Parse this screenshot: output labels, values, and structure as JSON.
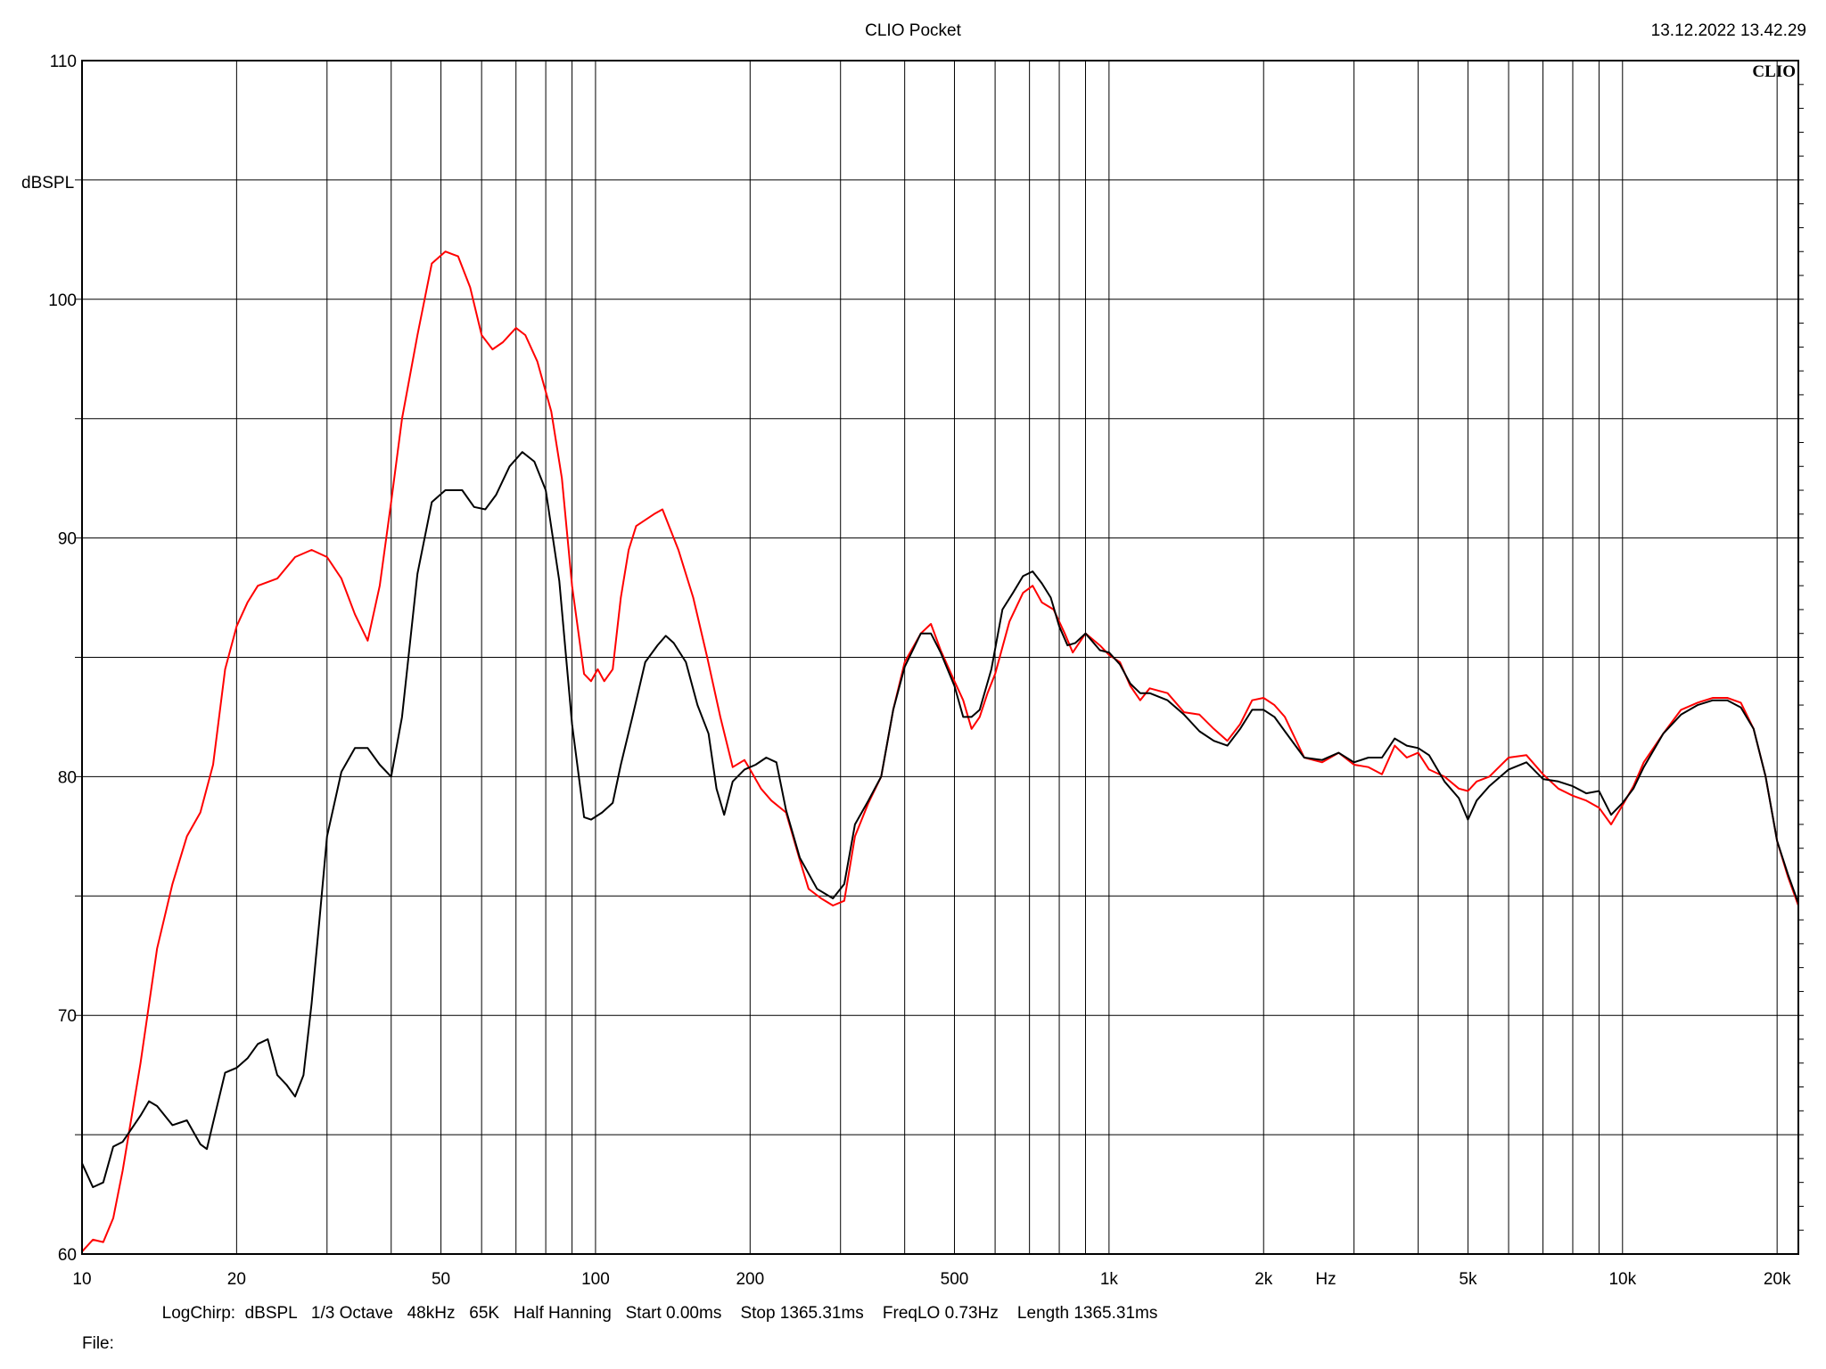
{
  "header": {
    "title": "CLIO Pocket",
    "timestamp": "13.12.2022 13.42.29",
    "logo": "CLIO"
  },
  "footer": {
    "settings": "LogChirp:  dBSPL   1/3 Octave   48kHz   65K   Half Hanning   Start 0.00ms    Stop 1365.31ms    FreqLO 0.73Hz    Length 1365.31ms",
    "file_label": "File:"
  },
  "chart_data": {
    "type": "line",
    "title": "CLIO Pocket",
    "xlabel": "Hz",
    "ylabel": "dBSPL",
    "xscale": "log",
    "xlim": [
      10,
      22000
    ],
    "ylim": [
      60,
      110
    ],
    "grid": true,
    "x_ticks": [
      10,
      20,
      50,
      100,
      200,
      500,
      1000,
      2000,
      5000,
      10000,
      20000
    ],
    "x_tick_labels": [
      "10",
      "20",
      "50",
      "100",
      "200",
      "500",
      "1k",
      "2k",
      "5k",
      "10k",
      "20k"
    ],
    "y_ticks": [
      60,
      70,
      80,
      90,
      100,
      110
    ],
    "y_tick_labels": [
      "60",
      "70",
      "80",
      "90",
      "100",
      "110"
    ],
    "series": [
      {
        "color": "#ff0000",
        "points": [
          [
            10,
            60.1
          ],
          [
            10.5,
            60.6
          ],
          [
            11,
            60.5
          ],
          [
            11.5,
            61.5
          ],
          [
            12,
            63.5
          ],
          [
            13,
            68
          ],
          [
            14,
            72.8
          ],
          [
            15,
            75.5
          ],
          [
            16,
            77.5
          ],
          [
            17,
            78.5
          ],
          [
            18,
            80.5
          ],
          [
            19,
            84.5
          ],
          [
            20,
            86.3
          ],
          [
            21,
            87.3
          ],
          [
            22,
            88
          ],
          [
            24,
            88.3
          ],
          [
            26,
            89.2
          ],
          [
            28,
            89.5
          ],
          [
            30,
            89.2
          ],
          [
            32,
            88.3
          ],
          [
            34,
            86.8
          ],
          [
            36,
            85.7
          ],
          [
            38,
            88
          ],
          [
            40,
            91.5
          ],
          [
            42,
            95
          ],
          [
            45,
            98.5
          ],
          [
            48,
            101.5
          ],
          [
            51,
            102
          ],
          [
            54,
            101.8
          ],
          [
            57,
            100.5
          ],
          [
            60,
            98.5
          ],
          [
            63,
            97.9
          ],
          [
            66,
            98.2
          ],
          [
            70,
            98.8
          ],
          [
            73,
            98.5
          ],
          [
            77,
            97.4
          ],
          [
            82,
            95.3
          ],
          [
            86,
            92.5
          ],
          [
            90,
            88
          ],
          [
            95,
            84.3
          ],
          [
            98,
            84
          ],
          [
            101,
            84.5
          ],
          [
            104,
            84
          ],
          [
            108,
            84.5
          ],
          [
            112,
            87.5
          ],
          [
            116,
            89.5
          ],
          [
            120,
            90.5
          ],
          [
            130,
            91
          ],
          [
            135,
            91.2
          ],
          [
            145,
            89.5
          ],
          [
            155,
            87.5
          ],
          [
            165,
            85
          ],
          [
            175,
            82.5
          ],
          [
            185,
            80.4
          ],
          [
            195,
            80.7
          ],
          [
            200,
            80.3
          ],
          [
            210,
            79.5
          ],
          [
            220,
            79
          ],
          [
            235,
            78.5
          ],
          [
            250,
            76.5
          ],
          [
            260,
            75.3
          ],
          [
            275,
            74.9
          ],
          [
            290,
            74.6
          ],
          [
            305,
            74.8
          ],
          [
            320,
            77.5
          ],
          [
            340,
            78.9
          ],
          [
            360,
            80
          ],
          [
            380,
            82.8
          ],
          [
            400,
            84.8
          ],
          [
            430,
            86
          ],
          [
            450,
            86.4
          ],
          [
            470,
            85.3
          ],
          [
            500,
            84
          ],
          [
            520,
            83.2
          ],
          [
            540,
            82
          ],
          [
            560,
            82.5
          ],
          [
            580,
            83.5
          ],
          [
            600,
            84.3
          ],
          [
            640,
            86.5
          ],
          [
            680,
            87.7
          ],
          [
            710,
            88
          ],
          [
            740,
            87.3
          ],
          [
            780,
            87
          ],
          [
            820,
            86
          ],
          [
            850,
            85.2
          ],
          [
            900,
            86
          ],
          [
            960,
            85.5
          ],
          [
            1000,
            85.1
          ],
          [
            1050,
            84.8
          ],
          [
            1100,
            83.8
          ],
          [
            1150,
            83.2
          ],
          [
            1200,
            83.7
          ],
          [
            1300,
            83.5
          ],
          [
            1400,
            82.7
          ],
          [
            1500,
            82.6
          ],
          [
            1600,
            82
          ],
          [
            1700,
            81.5
          ],
          [
            1800,
            82.2
          ],
          [
            1900,
            83.2
          ],
          [
            2000,
            83.3
          ],
          [
            2100,
            83
          ],
          [
            2200,
            82.5
          ],
          [
            2400,
            80.8
          ],
          [
            2600,
            80.6
          ],
          [
            2800,
            81
          ],
          [
            3000,
            80.5
          ],
          [
            3200,
            80.4
          ],
          [
            3400,
            80.1
          ],
          [
            3600,
            81.3
          ],
          [
            3800,
            80.8
          ],
          [
            4000,
            81
          ],
          [
            4200,
            80.3
          ],
          [
            4500,
            80
          ],
          [
            4800,
            79.5
          ],
          [
            5000,
            79.4
          ],
          [
            5200,
            79.8
          ],
          [
            5500,
            80
          ],
          [
            6000,
            80.8
          ],
          [
            6500,
            80.9
          ],
          [
            7000,
            80.1
          ],
          [
            7500,
            79.5
          ],
          [
            8000,
            79.2
          ],
          [
            8500,
            79
          ],
          [
            9000,
            78.7
          ],
          [
            9500,
            78
          ],
          [
            10000,
            78.8
          ],
          [
            10500,
            79.6
          ],
          [
            11000,
            80.6
          ],
          [
            12000,
            81.8
          ],
          [
            13000,
            82.8
          ],
          [
            14000,
            83.1
          ],
          [
            15000,
            83.3
          ],
          [
            16000,
            83.3
          ],
          [
            17000,
            83.1
          ],
          [
            18000,
            82
          ],
          [
            19000,
            80
          ],
          [
            20000,
            77.3
          ],
          [
            21000,
            75.8
          ],
          [
            22000,
            74.6
          ]
        ]
      },
      {
        "color": "#000000",
        "points": [
          [
            10,
            63.8
          ],
          [
            10.5,
            62.8
          ],
          [
            11,
            63
          ],
          [
            11.5,
            64.5
          ],
          [
            12,
            64.7
          ],
          [
            13,
            65.8
          ],
          [
            13.5,
            66.4
          ],
          [
            14,
            66.2
          ],
          [
            15,
            65.4
          ],
          [
            16,
            65.6
          ],
          [
            17,
            64.6
          ],
          [
            17.5,
            64.4
          ],
          [
            18,
            65.5
          ],
          [
            19,
            67.6
          ],
          [
            20,
            67.8
          ],
          [
            21,
            68.2
          ],
          [
            22,
            68.8
          ],
          [
            23,
            69
          ],
          [
            24,
            67.5
          ],
          [
            25,
            67.1
          ],
          [
            26,
            66.6
          ],
          [
            27,
            67.5
          ],
          [
            28,
            70.5
          ],
          [
            29,
            74
          ],
          [
            30,
            77.5
          ],
          [
            32,
            80.2
          ],
          [
            34,
            81.2
          ],
          [
            36,
            81.2
          ],
          [
            38,
            80.5
          ],
          [
            40,
            80
          ],
          [
            42,
            82.5
          ],
          [
            45,
            88.5
          ],
          [
            48,
            91.5
          ],
          [
            51,
            92
          ],
          [
            55,
            92
          ],
          [
            58,
            91.3
          ],
          [
            61,
            91.2
          ],
          [
            64,
            91.8
          ],
          [
            68,
            93
          ],
          [
            72,
            93.6
          ],
          [
            76,
            93.2
          ],
          [
            80,
            92
          ],
          [
            85,
            88.2
          ],
          [
            90,
            82.2
          ],
          [
            95,
            78.3
          ],
          [
            98,
            78.2
          ],
          [
            103,
            78.5
          ],
          [
            108,
            78.9
          ],
          [
            112,
            80.5
          ],
          [
            118,
            82.5
          ],
          [
            125,
            84.8
          ],
          [
            132,
            85.5
          ],
          [
            137,
            85.9
          ],
          [
            142,
            85.6
          ],
          [
            150,
            84.8
          ],
          [
            158,
            83
          ],
          [
            166,
            81.8
          ],
          [
            172,
            79.5
          ],
          [
            178,
            78.4
          ],
          [
            185,
            79.8
          ],
          [
            195,
            80.3
          ],
          [
            205,
            80.5
          ],
          [
            215,
            80.8
          ],
          [
            225,
            80.6
          ],
          [
            235,
            78.6
          ],
          [
            250,
            76.6
          ],
          [
            270,
            75.3
          ],
          [
            290,
            74.9
          ],
          [
            305,
            75.5
          ],
          [
            320,
            78
          ],
          [
            340,
            79
          ],
          [
            360,
            80
          ],
          [
            380,
            82.8
          ],
          [
            400,
            84.6
          ],
          [
            430,
            86
          ],
          [
            450,
            86
          ],
          [
            470,
            85.2
          ],
          [
            500,
            83.8
          ],
          [
            520,
            82.5
          ],
          [
            540,
            82.5
          ],
          [
            560,
            82.8
          ],
          [
            590,
            84.5
          ],
          [
            620,
            87
          ],
          [
            650,
            87.7
          ],
          [
            680,
            88.4
          ],
          [
            710,
            88.6
          ],
          [
            740,
            88.1
          ],
          [
            770,
            87.5
          ],
          [
            800,
            86.3
          ],
          [
            830,
            85.5
          ],
          [
            860,
            85.6
          ],
          [
            900,
            86
          ],
          [
            960,
            85.3
          ],
          [
            1000,
            85.2
          ],
          [
            1050,
            84.7
          ],
          [
            1100,
            83.9
          ],
          [
            1150,
            83.5
          ],
          [
            1200,
            83.5
          ],
          [
            1300,
            83.2
          ],
          [
            1400,
            82.6
          ],
          [
            1500,
            81.9
          ],
          [
            1600,
            81.5
          ],
          [
            1700,
            81.3
          ],
          [
            1800,
            82
          ],
          [
            1900,
            82.8
          ],
          [
            2000,
            82.8
          ],
          [
            2100,
            82.5
          ],
          [
            2200,
            81.9
          ],
          [
            2400,
            80.8
          ],
          [
            2600,
            80.7
          ],
          [
            2800,
            81
          ],
          [
            3000,
            80.6
          ],
          [
            3200,
            80.8
          ],
          [
            3400,
            80.8
          ],
          [
            3600,
            81.6
          ],
          [
            3800,
            81.3
          ],
          [
            4000,
            81.2
          ],
          [
            4200,
            80.9
          ],
          [
            4500,
            79.8
          ],
          [
            4800,
            79.1
          ],
          [
            5000,
            78.2
          ],
          [
            5200,
            79
          ],
          [
            5500,
            79.6
          ],
          [
            6000,
            80.3
          ],
          [
            6500,
            80.6
          ],
          [
            7000,
            79.9
          ],
          [
            7500,
            79.8
          ],
          [
            8000,
            79.6
          ],
          [
            8500,
            79.3
          ],
          [
            9000,
            79.4
          ],
          [
            9500,
            78.4
          ],
          [
            10000,
            78.9
          ],
          [
            10500,
            79.5
          ],
          [
            11000,
            80.4
          ],
          [
            12000,
            81.8
          ],
          [
            13000,
            82.6
          ],
          [
            14000,
            83
          ],
          [
            15000,
            83.2
          ],
          [
            16000,
            83.2
          ],
          [
            17000,
            82.9
          ],
          [
            18000,
            82
          ],
          [
            19000,
            80
          ],
          [
            20000,
            77.3
          ],
          [
            21000,
            75.9
          ],
          [
            22000,
            74.7
          ]
        ]
      }
    ]
  }
}
